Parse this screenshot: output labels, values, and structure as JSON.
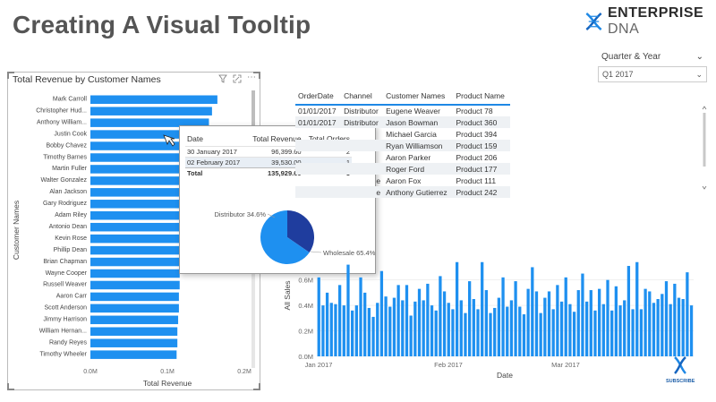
{
  "page": {
    "title": "Creating A Visual Tooltip"
  },
  "brand": {
    "name": "ENTERPRISE",
    "suffix": "DNA",
    "subscribe": "SUBSCRIBE"
  },
  "slicer": {
    "label": "Quarter & Year",
    "value": "Q1 2017"
  },
  "bar_visual": {
    "title": "Total Revenue by Customer Names",
    "ylabel": "Customer Names",
    "xlabel": "Total Revenue",
    "xticks": [
      "0.0M",
      "0.1M",
      "0.2M"
    ],
    "icons": [
      "filter-icon",
      "focus-mode-icon",
      "more-options-icon"
    ]
  },
  "chart_data": [
    {
      "type": "bar",
      "title": "Total Revenue by Customer Names",
      "xlabel": "Total Revenue",
      "ylabel": "Customer Names",
      "orientation": "horizontal",
      "xlim": [
        0,
        0.2
      ],
      "color": "#1e90f0",
      "categories": [
        "Mark Carroll",
        "Christopher Hud...",
        "Anthony William...",
        "Justin Cook",
        "Bobby Chavez",
        "Timothy Barnes",
        "Martin Fuller",
        "Walter Gonzalez",
        "Alan Jackson",
        "Gary Rodriguez",
        "Adam Riley",
        "Antonio Dean",
        "Kevin Rose",
        "Phillip Dean",
        "Brian Chapman",
        "Wayne Cooper",
        "Russell Weaver",
        "Aaron Carr",
        "Scott Anderson",
        "Jimmy Harrison",
        "William Hernan...",
        "Randy Reyes",
        "Timothy Wheeler"
      ],
      "values": [
        0.165,
        0.158,
        0.154,
        0.142,
        0.138,
        0.134,
        0.13,
        0.126,
        0.125,
        0.124,
        0.121,
        0.12,
        0.119,
        0.118,
        0.117,
        0.116,
        0.116,
        0.115,
        0.115,
        0.114,
        0.113,
        0.113,
        0.112
      ]
    },
    {
      "type": "bar",
      "title": "",
      "xlabel": "Date",
      "ylabel": "All Sales",
      "ylim": [
        0,
        0.9
      ],
      "yticks": [
        "0.0M",
        "0.2M",
        "0.4M",
        "0.6M"
      ],
      "xticks": [
        "Jan 2017",
        "Feb 2017",
        "Mar 2017"
      ],
      "color": "#1e90f0",
      "values": [
        0.62,
        0.4,
        0.5,
        0.42,
        0.41,
        0.56,
        0.4,
        0.72,
        0.36,
        0.4,
        0.62,
        0.5,
        0.38,
        0.31,
        0.42,
        0.67,
        0.47,
        0.39,
        0.46,
        0.56,
        0.44,
        0.56,
        0.32,
        0.43,
        0.53,
        0.44,
        0.57,
        0.4,
        0.36,
        0.63,
        0.51,
        0.42,
        0.37,
        0.74,
        0.44,
        0.34,
        0.59,
        0.45,
        0.37,
        0.74,
        0.52,
        0.34,
        0.38,
        0.46,
        0.62,
        0.39,
        0.44,
        0.59,
        0.39,
        0.33,
        0.53,
        0.7,
        0.51,
        0.34,
        0.46,
        0.51,
        0.37,
        0.56,
        0.43,
        0.62,
        0.41,
        0.35,
        0.52,
        0.65,
        0.43,
        0.52,
        0.36,
        0.53,
        0.41,
        0.6,
        0.36,
        0.55,
        0.4,
        0.44,
        0.71,
        0.37,
        0.74,
        0.37,
        0.53,
        0.51,
        0.42,
        0.45,
        0.49,
        0.59,
        0.41,
        0.57,
        0.46,
        0.45,
        0.66,
        0.4
      ]
    },
    {
      "type": "pie",
      "labels": [
        "Distributor",
        "Wholesale"
      ],
      "values": [
        34.6,
        65.4
      ],
      "display": [
        "Distributor 34.6%",
        "Wholesale 65.4%"
      ],
      "colors": [
        "#1f3d9e",
        "#1e90f0"
      ]
    }
  ],
  "tooltip": {
    "headers": [
      "Date",
      "Total Revenue",
      "Total Orders"
    ],
    "rows": [
      [
        "30 January 2017",
        "96,399.60",
        "2"
      ],
      [
        "02 February 2017",
        "39,530.00",
        "1"
      ]
    ],
    "total": [
      "Total",
      "135,929.60",
      "3"
    ]
  },
  "data_table": {
    "headers": [
      "OrderDate",
      "Channel",
      "Customer Names",
      "Product Name"
    ],
    "rows": [
      [
        "01/01/2017",
        "Distributor",
        "Eugene Weaver",
        "Product 78"
      ],
      [
        "01/01/2017",
        "Distributor",
        "Jason Bowman",
        "Product 360"
      ],
      [
        "",
        "",
        "Michael Garcia",
        "Product 394"
      ],
      [
        "",
        "",
        "Ryan Williamson",
        "Product 159"
      ],
      [
        "",
        "",
        "Aaron Parker",
        "Product 206"
      ],
      [
        "",
        "",
        "Roger Ford",
        "Product 177"
      ],
      [
        "",
        "e",
        "Aaron Fox",
        "Product 111"
      ],
      [
        "",
        "e",
        "Anthony Gutierrez",
        "Product 242"
      ]
    ]
  }
}
